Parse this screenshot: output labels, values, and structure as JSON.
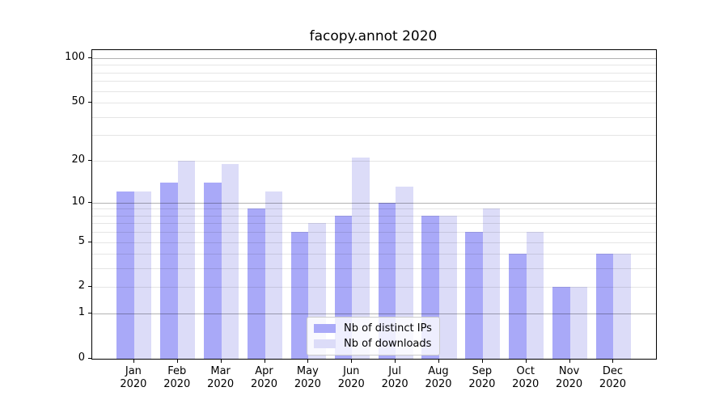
{
  "chart_data": {
    "type": "bar",
    "title": "facopy.annot 2020",
    "categories": [
      "Jan",
      "Feb",
      "Mar",
      "Apr",
      "May",
      "Jun",
      "Jul",
      "Aug",
      "Sep",
      "Oct",
      "Nov",
      "Dec"
    ],
    "x_tick_line2": "2020",
    "series": [
      {
        "name": "Nb of distinct IPs",
        "color": "#a9a9f8",
        "values": [
          12,
          14,
          14,
          9,
          6,
          8,
          10,
          8,
          6,
          4,
          2,
          4
        ]
      },
      {
        "name": "Nb of downloads",
        "color": "#dcdcf8",
        "values": [
          12,
          20,
          19,
          12,
          7,
          21,
          13,
          8,
          9,
          6,
          2,
          4
        ]
      }
    ],
    "xlabel": "",
    "ylabel": "",
    "yscale": "log1p",
    "ylim": [
      0,
      113
    ],
    "yticks_labeled": [
      0,
      1,
      2,
      5,
      10,
      20,
      50,
      100
    ],
    "yticks_major_grid": [
      1,
      10,
      100
    ],
    "yticks_minor_grid": [
      2,
      3,
      4,
      5,
      6,
      7,
      8,
      9,
      20,
      30,
      40,
      50,
      60,
      70,
      80,
      90
    ],
    "grid": "major+minor horizontal",
    "legend_position": "lower center"
  },
  "colors": {
    "background": "#ffffff",
    "axis": "#000000",
    "grid_major": "rgba(0,0,0,0.30)",
    "grid_minor": "rgba(0,0,0,0.10)",
    "legend_border": "#cccccc",
    "legend_background": "rgba(255,255,255,0.8)"
  }
}
